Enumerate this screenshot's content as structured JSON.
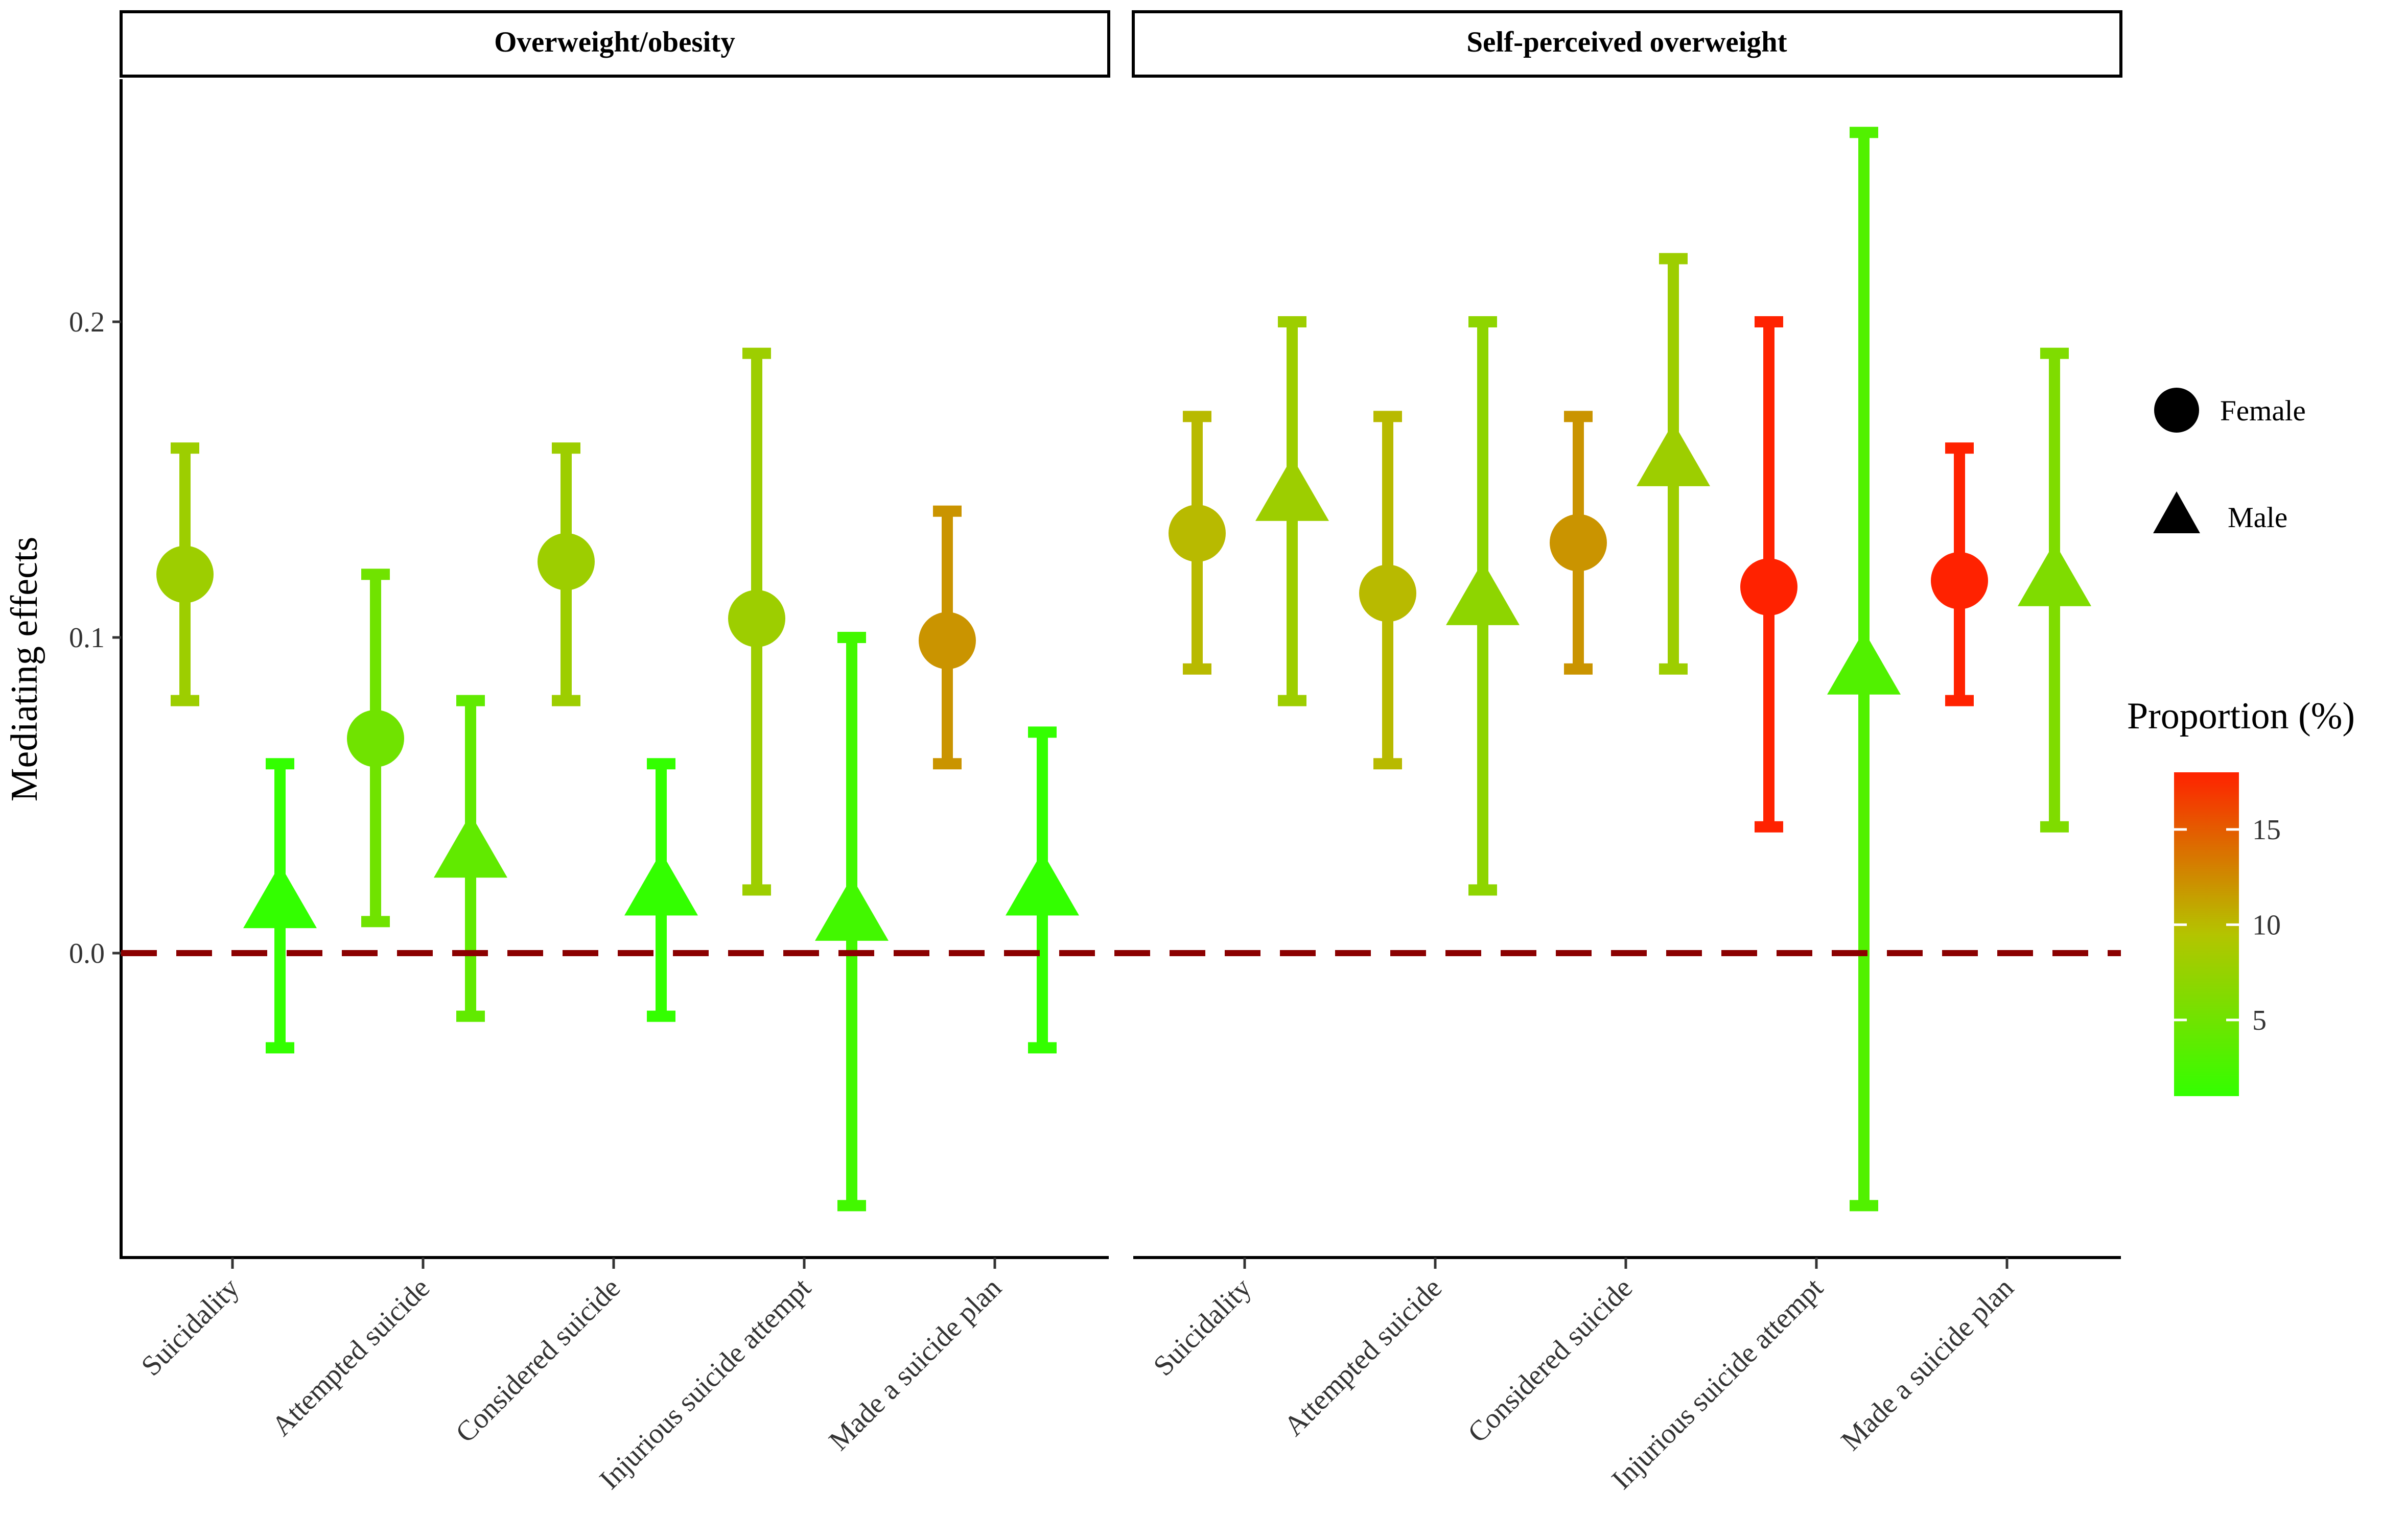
{
  "chart_data": {
    "type": "errorbar",
    "ylabel": "Mediating effects",
    "ylim": [
      -0.1,
      0.28
    ],
    "yticks": [
      "0.0",
      "0.1",
      "0.2"
    ],
    "reference_line": 0.0,
    "categories": [
      "Suicidality",
      "Attempted suicide",
      "Considered suicide",
      "Injurious suicide attempt",
      "Made a suicide plan"
    ],
    "panels": [
      {
        "title": "Overweight/obesity",
        "series": [
          {
            "name": "Female",
            "shape": "circle",
            "values": [
              0.12,
              0.068,
              0.124,
              0.106,
              0.099
            ],
            "lower": [
              0.08,
              0.01,
              0.08,
              0.02,
              0.06
            ],
            "upper": [
              0.16,
              0.12,
              0.16,
              0.19,
              0.14
            ],
            "proportion": [
              8,
              5,
              8,
              8,
              12
            ]
          },
          {
            "name": "Male",
            "shape": "triangle",
            "values": [
              0.016,
              0.032,
              0.02,
              0.012,
              0.02
            ],
            "lower": [
              -0.03,
              -0.02,
              -0.02,
              -0.08,
              -0.03
            ],
            "upper": [
              0.06,
              0.08,
              0.06,
              0.1,
              0.07
            ],
            "proportion": [
              1,
              4,
              1,
              2,
              1
            ]
          }
        ]
      },
      {
        "title": "Self-perceived overweight",
        "series": [
          {
            "name": "Female",
            "shape": "circle",
            "values": [
              0.133,
              0.114,
              0.13,
              0.116,
              0.118
            ],
            "lower": [
              0.09,
              0.06,
              0.09,
              0.04,
              0.08
            ],
            "upper": [
              0.17,
              0.17,
              0.17,
              0.2,
              0.16
            ],
            "proportion": [
              10,
              10,
              12,
              18,
              18
            ]
          },
          {
            "name": "Male",
            "shape": "triangle",
            "values": [
              0.145,
              0.112,
              0.156,
              0.09,
              0.118
            ],
            "lower": [
              0.08,
              0.02,
              0.09,
              -0.08,
              0.04
            ],
            "upper": [
              0.2,
              0.2,
              0.22,
              0.26,
              0.19
            ],
            "proportion": [
              8,
              7,
              8,
              3,
              6
            ]
          }
        ]
      }
    ],
    "legend": {
      "shape_entries": [
        "Female",
        "Male"
      ],
      "color_title": "Proportion (%)",
      "color_ticks": [
        "5",
        "10",
        "15"
      ],
      "color_range": [
        1,
        18
      ],
      "colors": {
        "low": "#33ff00",
        "mid": "#b4c400",
        "high": "#ff2200"
      }
    }
  }
}
